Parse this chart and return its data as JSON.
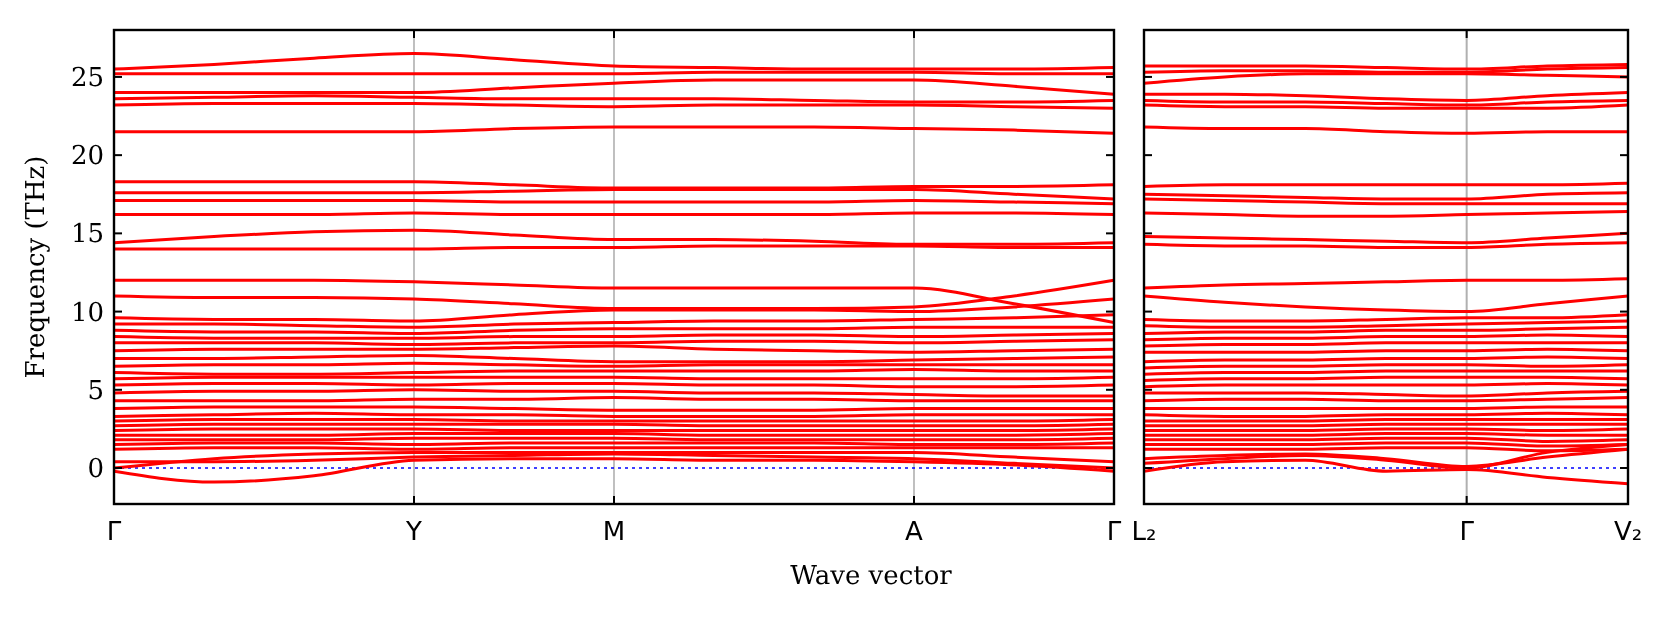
{
  "chart_data": [
    {
      "type": "line",
      "ylabel": "Frequency (THz)",
      "xlabel": "Wave vector",
      "color": "#ff0000",
      "grid": "x",
      "ylim": [
        -2.3,
        28
      ],
      "yticks": [
        0,
        5,
        10,
        15,
        20,
        25
      ],
      "categories": [
        "Γ",
        null,
        null,
        "Y",
        null,
        "M",
        null,
        null,
        "A",
        null,
        "Γ"
      ],
      "ref_lines": [
        {
          "axis": "y",
          "value": 0,
          "color": "#0000ff",
          "line_style": "dotted"
        }
      ],
      "series": [
        {
          "values": [
            25.5,
            25.8,
            26.2,
            26.5,
            26.1,
            25.7,
            25.6,
            25.5,
            25.5,
            25.5,
            25.6
          ]
        },
        {
          "values": [
            25.2,
            25.2,
            25.2,
            25.2,
            25.2,
            25.2,
            25.3,
            25.3,
            25.3,
            25.2,
            25.2
          ]
        },
        {
          "values": [
            24.0,
            24.0,
            24.0,
            24.0,
            24.3,
            24.6,
            24.8,
            24.8,
            24.8,
            24.4,
            23.9
          ]
        },
        {
          "values": [
            23.6,
            23.7,
            23.8,
            23.7,
            23.6,
            23.6,
            23.6,
            23.5,
            23.4,
            23.4,
            23.5
          ]
        },
        {
          "values": [
            23.2,
            23.3,
            23.3,
            23.3,
            23.2,
            23.1,
            23.2,
            23.2,
            23.2,
            23.1,
            23.0
          ]
        },
        {
          "values": [
            21.5,
            21.5,
            21.5,
            21.5,
            21.7,
            21.8,
            21.8,
            21.8,
            21.7,
            21.6,
            21.4
          ]
        },
        {
          "values": [
            18.3,
            18.3,
            18.3,
            18.3,
            18.1,
            17.9,
            17.9,
            17.9,
            18.0,
            18.0,
            18.1
          ]
        },
        {
          "values": [
            17.6,
            17.6,
            17.6,
            17.6,
            17.7,
            17.8,
            17.8,
            17.8,
            17.8,
            17.5,
            17.2
          ]
        },
        {
          "values": [
            17.1,
            17.1,
            17.1,
            17.1,
            17.0,
            17.0,
            17.0,
            17.0,
            17.1,
            17.0,
            16.9
          ]
        },
        {
          "values": [
            16.2,
            16.2,
            16.2,
            16.3,
            16.2,
            16.2,
            16.2,
            16.2,
            16.3,
            16.3,
            16.2
          ]
        },
        {
          "values": [
            14.4,
            14.8,
            15.1,
            15.2,
            14.9,
            14.6,
            14.6,
            14.5,
            14.3,
            14.3,
            14.4
          ]
        },
        {
          "values": [
            14.0,
            14.0,
            14.0,
            14.0,
            14.1,
            14.1,
            14.2,
            14.2,
            14.2,
            14.1,
            14.1
          ]
        },
        {
          "values": [
            12.0,
            12.0,
            12.0,
            11.9,
            11.7,
            11.5,
            11.5,
            11.5,
            11.5,
            10.5,
            9.3
          ]
        },
        {
          "values": [
            11.0,
            10.9,
            10.9,
            10.8,
            10.5,
            10.2,
            10.2,
            10.2,
            10.3,
            11.0,
            12.0
          ]
        },
        {
          "values": [
            9.6,
            9.5,
            9.5,
            9.4,
            9.8,
            10.1,
            10.1,
            10.1,
            10.0,
            10.3,
            10.8
          ]
        },
        {
          "values": [
            9.2,
            9.2,
            9.1,
            9.0,
            9.2,
            9.3,
            9.4,
            9.4,
            9.5,
            9.6,
            9.8
          ]
        },
        {
          "values": [
            8.8,
            8.7,
            8.7,
            8.6,
            8.8,
            8.9,
            8.9,
            8.9,
            9.0,
            9.0,
            9.0
          ]
        },
        {
          "values": [
            8.4,
            8.3,
            8.3,
            8.3,
            8.4,
            8.4,
            8.5,
            8.5,
            8.4,
            8.5,
            8.6
          ]
        },
        {
          "values": [
            8.0,
            8.0,
            8.0,
            7.9,
            8.0,
            8.0,
            8.1,
            8.1,
            8.0,
            8.1,
            8.2
          ]
        },
        {
          "values": [
            7.5,
            7.6,
            7.6,
            7.6,
            7.7,
            7.8,
            7.6,
            7.5,
            7.4,
            7.5,
            7.6
          ]
        },
        {
          "values": [
            7.0,
            7.0,
            7.1,
            7.2,
            7.0,
            6.8,
            6.8,
            6.8,
            6.9,
            7.0,
            7.1
          ]
        },
        {
          "values": [
            6.5,
            6.6,
            6.6,
            6.7,
            6.6,
            6.5,
            6.6,
            6.6,
            6.6,
            6.6,
            6.6
          ]
        },
        {
          "values": [
            6.1,
            6.0,
            6.0,
            6.1,
            6.2,
            6.2,
            6.2,
            6.2,
            6.3,
            6.2,
            6.2
          ]
        },
        {
          "values": [
            5.7,
            5.8,
            5.8,
            5.8,
            5.8,
            5.8,
            5.7,
            5.7,
            5.7,
            5.7,
            5.8
          ]
        },
        {
          "values": [
            5.3,
            5.4,
            5.4,
            5.3,
            5.4,
            5.4,
            5.3,
            5.3,
            5.2,
            5.2,
            5.3
          ]
        },
        {
          "values": [
            4.8,
            4.9,
            4.9,
            5.0,
            4.9,
            4.9,
            4.8,
            4.8,
            4.7,
            4.6,
            4.6
          ]
        },
        {
          "values": [
            4.3,
            4.3,
            4.3,
            4.4,
            4.4,
            4.5,
            4.4,
            4.4,
            4.3,
            4.3,
            4.3
          ]
        },
        {
          "values": [
            3.8,
            3.9,
            3.9,
            3.9,
            3.8,
            3.7,
            3.7,
            3.7,
            3.8,
            3.8,
            3.8
          ]
        },
        {
          "values": [
            3.3,
            3.4,
            3.5,
            3.4,
            3.4,
            3.3,
            3.3,
            3.3,
            3.4,
            3.4,
            3.4
          ]
        },
        {
          "values": [
            3.0,
            3.1,
            3.1,
            3.1,
            3.0,
            3.0,
            3.0,
            3.0,
            3.0,
            3.0,
            3.1
          ]
        },
        {
          "values": [
            2.7,
            2.8,
            2.8,
            2.8,
            2.8,
            2.8,
            2.7,
            2.7,
            2.7,
            2.7,
            2.8
          ]
        },
        {
          "values": [
            2.4,
            2.5,
            2.5,
            2.5,
            2.4,
            2.4,
            2.4,
            2.4,
            2.4,
            2.4,
            2.5
          ]
        },
        {
          "values": [
            2.1,
            2.1,
            2.1,
            2.2,
            2.2,
            2.2,
            2.1,
            2.1,
            2.1,
            2.1,
            2.2
          ]
        },
        {
          "values": [
            1.8,
            1.8,
            1.8,
            1.9,
            1.9,
            1.9,
            1.8,
            1.8,
            1.8,
            1.8,
            1.9
          ]
        },
        {
          "values": [
            1.5,
            1.6,
            1.6,
            1.5,
            1.6,
            1.6,
            1.6,
            1.6,
            1.5,
            1.5,
            1.6
          ]
        },
        {
          "values": [
            1.2,
            1.3,
            1.3,
            1.2,
            1.3,
            1.3,
            1.3,
            1.3,
            1.3,
            1.3,
            1.3
          ]
        },
        {
          "values": [
            0,
            0.6,
            0.9,
            1.0,
            1.0,
            1.0,
            1.0,
            1.0,
            1.0,
            0.7,
            0.4
          ]
        },
        {
          "values": [
            0.4,
            0.4,
            0.5,
            0.7,
            0.8,
            0.9,
            0.8,
            0.7,
            0.6,
            0.3,
            0
          ]
        },
        {
          "values": [
            -0.2,
            -0.9,
            -0.5,
            0.5,
            0.6,
            0.6,
            0.5,
            0.5,
            0.4,
            0.2,
            -0.2
          ]
        }
      ]
    },
    {
      "type": "line",
      "color": "#ff0000",
      "tick_labels": "x",
      "ylim": [
        -2.3,
        28
      ],
      "yticks": [
        0,
        5,
        10,
        15,
        20,
        25
      ],
      "categories": [
        "L₂",
        null,
        null,
        null,
        "Γ",
        null,
        "V₂"
      ],
      "ref_lines": [
        {
          "axis": "y",
          "value": 0,
          "color": "#0000ff",
          "line_style": "dotted"
        },
        {
          "axis": "x",
          "value": "Γ",
          "color": "#b0b0b0"
        }
      ],
      "series": [
        {
          "values": [
            25.7,
            25.7,
            25.7,
            25.6,
            25.5,
            25.7,
            25.8
          ]
        },
        {
          "values": [
            25.3,
            25.4,
            25.4,
            25.3,
            25.3,
            25.5,
            25.6
          ]
        },
        {
          "values": [
            24.6,
            25.0,
            25.2,
            25.2,
            25.2,
            25.1,
            25.0
          ]
        },
        {
          "values": [
            23.9,
            23.9,
            23.8,
            23.6,
            23.5,
            23.8,
            24.0
          ]
        },
        {
          "values": [
            23.5,
            23.4,
            23.4,
            23.3,
            23.2,
            23.4,
            23.5
          ]
        },
        {
          "values": [
            23.2,
            23.1,
            23.1,
            23.0,
            23.0,
            23.0,
            23.2
          ]
        },
        {
          "values": [
            21.8,
            21.7,
            21.7,
            21.5,
            21.4,
            21.5,
            21.5
          ]
        },
        {
          "values": [
            18.0,
            18.1,
            18.1,
            18.1,
            18.1,
            18.1,
            18.2
          ]
        },
        {
          "values": [
            17.5,
            17.4,
            17.3,
            17.2,
            17.2,
            17.5,
            17.6
          ]
        },
        {
          "values": [
            17.2,
            17.1,
            17.0,
            16.9,
            16.9,
            16.9,
            16.9
          ]
        },
        {
          "values": [
            16.3,
            16.2,
            16.1,
            16.1,
            16.2,
            16.3,
            16.4
          ]
        },
        {
          "values": [
            14.8,
            14.7,
            14.6,
            14.5,
            14.4,
            14.7,
            15.0
          ]
        },
        {
          "values": [
            14.3,
            14.2,
            14.2,
            14.1,
            14.1,
            14.3,
            14.4
          ]
        },
        {
          "values": [
            11.5,
            11.7,
            11.8,
            11.9,
            12.0,
            12.0,
            12.1
          ]
        },
        {
          "values": [
            11.0,
            10.6,
            10.3,
            10.1,
            10.0,
            10.5,
            11.0
          ]
        },
        {
          "values": [
            9.5,
            9.4,
            9.4,
            9.5,
            9.6,
            9.6,
            9.8
          ]
        },
        {
          "values": [
            9.1,
            9.0,
            9.0,
            9.1,
            9.2,
            9.3,
            9.4
          ]
        },
        {
          "values": [
            8.6,
            8.7,
            8.7,
            8.8,
            8.8,
            8.9,
            9.0
          ]
        },
        {
          "values": [
            8.2,
            8.3,
            8.3,
            8.4,
            8.4,
            8.5,
            8.4
          ]
        },
        {
          "values": [
            7.8,
            7.9,
            7.9,
            8.0,
            8.0,
            8.0,
            8.0
          ]
        },
        {
          "values": [
            7.4,
            7.4,
            7.4,
            7.5,
            7.5,
            7.6,
            7.5
          ]
        },
        {
          "values": [
            6.8,
            6.9,
            6.9,
            7.0,
            7.0,
            7.1,
            7.0
          ]
        },
        {
          "values": [
            6.4,
            6.5,
            6.5,
            6.6,
            6.6,
            6.5,
            6.6
          ]
        },
        {
          "values": [
            6.0,
            6.1,
            6.1,
            6.2,
            6.2,
            6.2,
            6.2
          ]
        },
        {
          "values": [
            5.6,
            5.7,
            5.7,
            5.8,
            5.8,
            5.8,
            5.7
          ]
        },
        {
          "values": [
            5.2,
            5.3,
            5.3,
            5.3,
            5.3,
            5.4,
            5.3
          ]
        },
        {
          "values": [
            4.8,
            4.8,
            4.8,
            4.7,
            4.6,
            4.8,
            4.9
          ]
        },
        {
          "values": [
            4.3,
            4.4,
            4.4,
            4.3,
            4.3,
            4.4,
            4.5
          ]
        },
        {
          "values": [
            3.8,
            3.8,
            3.8,
            3.8,
            3.8,
            3.9,
            3.9
          ]
        },
        {
          "values": [
            3.4,
            3.3,
            3.3,
            3.4,
            3.4,
            3.5,
            3.4
          ]
        },
        {
          "values": [
            3.0,
            3.0,
            3.0,
            3.1,
            3.1,
            3.1,
            3.1
          ]
        },
        {
          "values": [
            2.7,
            2.7,
            2.7,
            2.8,
            2.8,
            2.8,
            2.8
          ]
        },
        {
          "values": [
            2.4,
            2.4,
            2.4,
            2.5,
            2.5,
            2.4,
            2.5
          ]
        },
        {
          "values": [
            2.1,
            2.1,
            2.1,
            2.2,
            2.2,
            2.1,
            2.1
          ]
        },
        {
          "values": [
            1.8,
            1.8,
            1.8,
            1.9,
            1.9,
            1.7,
            1.8
          ]
        },
        {
          "values": [
            1.5,
            1.5,
            1.5,
            1.6,
            1.6,
            1.4,
            1.5
          ]
        },
        {
          "values": [
            1.2,
            1.2,
            1.2,
            1.3,
            1.3,
            1.1,
            1.2
          ]
        },
        {
          "values": [
            0.3,
            0.6,
            0.8,
            0.5,
            0,
            1.0,
            1.5
          ]
        },
        {
          "values": [
            0.6,
            0.8,
            0.9,
            0.6,
            0.1,
            0.7,
            1.2
          ]
        },
        {
          "values": [
            -0.2,
            0.4,
            0.5,
            -0.2,
            -0.1,
            -0.6,
            -1.0
          ]
        }
      ]
    }
  ]
}
